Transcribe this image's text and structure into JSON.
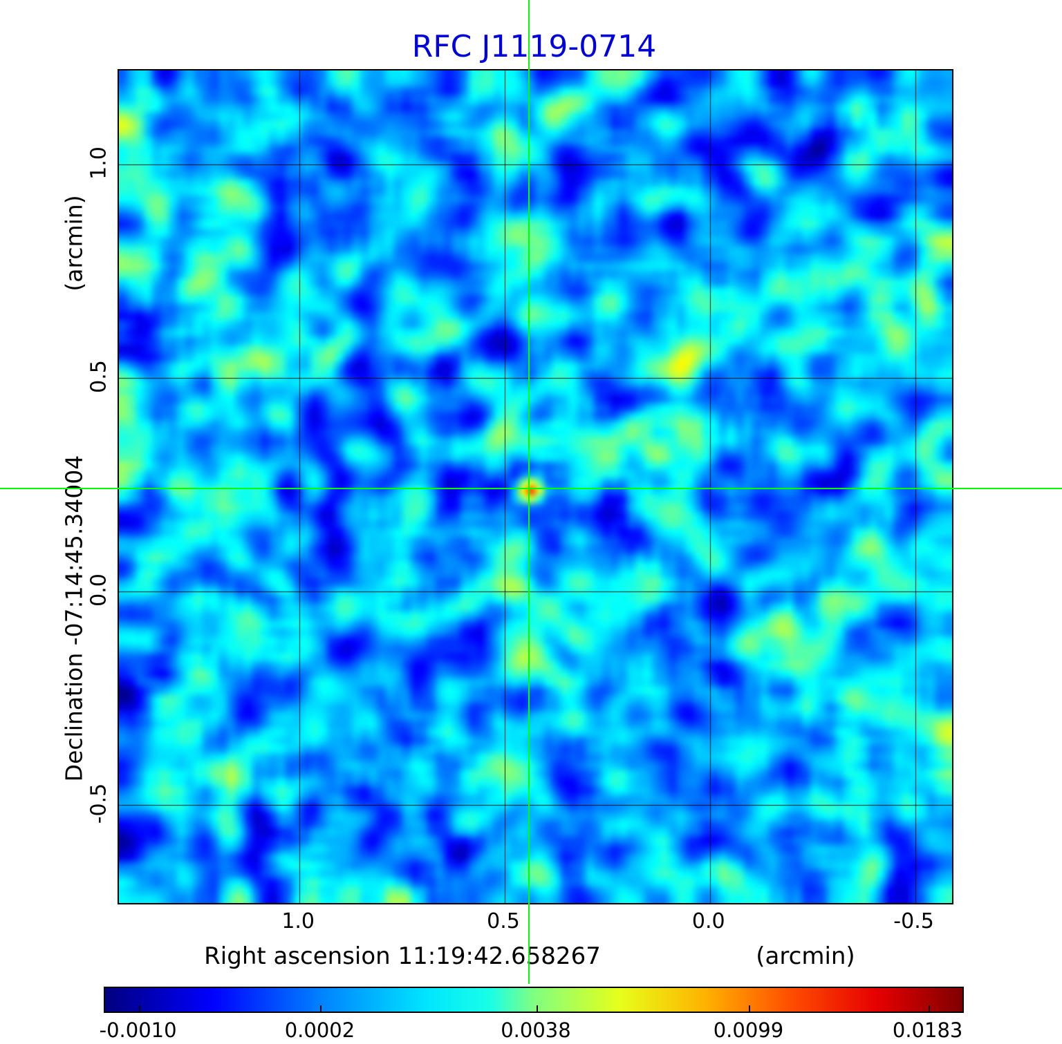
{
  "title": "RFC J1119-0714",
  "title_color": "#0000dd",
  "axes": {
    "x_title": "Right ascension  11:19:42.658267",
    "x_unit": "(arcmin)",
    "y_title": "Declination  -07:14:45.34004",
    "y_unit": "(arcmin)",
    "x_ticks": [
      "1.0",
      "0.5",
      "0.0",
      "-0.5"
    ],
    "y_ticks": [
      "1.0",
      "0.5",
      "0.0",
      "-0.5"
    ]
  },
  "colorbar": {
    "tick_labels": [
      "-0.0010",
      "0.0002",
      "0.0038",
      "0.0099",
      "0.0183"
    ]
  },
  "chart_data": {
    "type": "heatmap",
    "title": "RFC J1119-0714",
    "xlabel": "Right ascension 11:19:42.658267 (arcmin)",
    "ylabel": "Declination -07:14:45.34004 (arcmin)",
    "x_ticks": [
      1.0,
      0.5,
      0.0,
      -0.5
    ],
    "y_ticks": [
      1.0,
      0.5,
      0.0,
      -0.5
    ],
    "x_range": [
      1.44,
      -0.59
    ],
    "y_range": [
      -0.73,
      1.22
    ],
    "grid": true,
    "colormap": "jet",
    "colorbar_ticks": [
      -0.001,
      0.0002,
      0.0038,
      0.0099,
      0.0183
    ],
    "value_range": [
      -0.001,
      0.0183
    ],
    "background_level": 0.0002,
    "source": {
      "ra": "11:19:42.658267",
      "dec": "-07:14:45.34004",
      "x_arcmin": 0.437,
      "y_arcmin": 0.237,
      "peak": 0.0183
    },
    "crosshair_color": "#00ff00"
  }
}
